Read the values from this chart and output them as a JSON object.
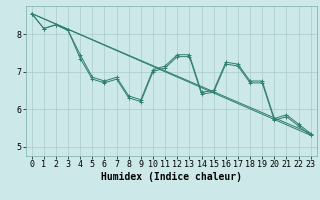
{
  "xlabel": "Humidex (Indice chaleur)",
  "background_color": "#cce8e8",
  "grid_color": "#aacccc",
  "line_color": "#2e7d6e",
  "xlim": [
    -0.5,
    23.5
  ],
  "ylim": [
    4.75,
    8.75
  ],
  "yticks": [
    5,
    6,
    7,
    8
  ],
  "xticks": [
    0,
    1,
    2,
    3,
    4,
    5,
    6,
    7,
    8,
    9,
    10,
    11,
    12,
    13,
    14,
    15,
    16,
    17,
    18,
    19,
    20,
    21,
    22,
    23
  ],
  "line1_x": [
    0,
    1,
    2,
    3,
    4,
    5,
    6,
    7,
    8,
    9,
    10,
    11,
    12,
    13,
    14,
    15,
    16,
    17,
    18,
    19,
    20,
    21,
    22,
    23
  ],
  "line1_y": [
    8.55,
    8.15,
    8.25,
    8.1,
    7.45,
    6.85,
    6.75,
    6.85,
    6.35,
    6.25,
    7.05,
    7.15,
    7.45,
    7.45,
    6.45,
    6.5,
    7.25,
    7.2,
    6.75,
    6.75,
    5.75,
    5.85,
    5.6,
    5.35
  ],
  "line2_x": [
    0,
    1,
    2,
    3,
    4,
    5,
    6,
    7,
    8,
    9,
    10,
    11,
    12,
    13,
    14,
    15,
    16,
    17,
    18,
    19,
    20,
    21,
    22,
    23
  ],
  "line2_y": [
    8.55,
    8.15,
    8.25,
    8.1,
    7.35,
    6.8,
    6.7,
    6.8,
    6.3,
    6.2,
    7.0,
    7.1,
    7.4,
    7.4,
    6.4,
    6.45,
    7.2,
    7.15,
    6.7,
    6.7,
    5.7,
    5.8,
    5.55,
    5.3
  ],
  "line3_x": [
    0,
    23
  ],
  "line3_y": [
    8.55,
    5.35
  ],
  "line4_x": [
    0,
    23
  ],
  "line4_y": [
    8.55,
    5.3
  ],
  "marker_size": 2.5,
  "font_size_label": 7,
  "font_size_tick": 6
}
